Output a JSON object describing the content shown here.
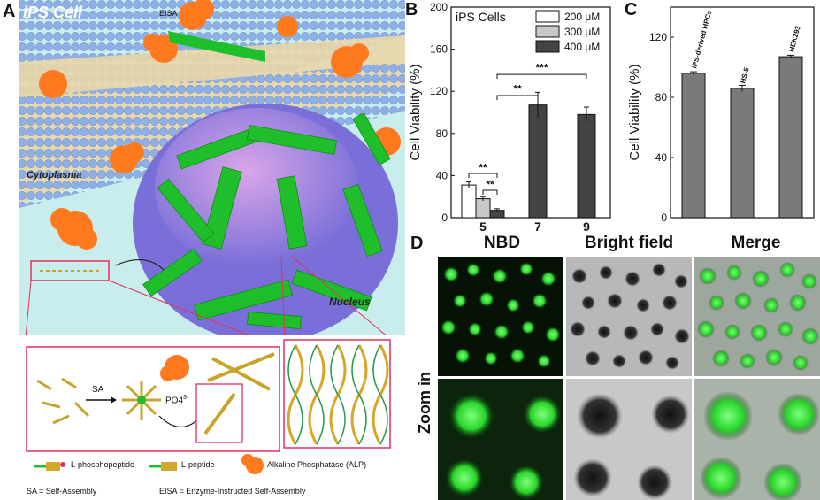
{
  "panel_a": {
    "letter": "A",
    "title": "iPS Cell",
    "eisa_arrow_label": "EISA",
    "cytoplasma_label": "Cytoplasma",
    "nucleus_label": "Nucleus",
    "sa_label": "SA",
    "phosphate_label": "PO4",
    "phosphate_sup": "3-",
    "legend": {
      "phosphopeptide": "L-phosphopeptide",
      "peptide": "L-peptide",
      "alp": "Alkaline Phosphatase (ALP)",
      "sa_def": "SA = Self-Assembly",
      "eisa_def": "EISA = Enzyme-Instructed Self-Assembly"
    },
    "colors": {
      "membrane": "#8fb0e6",
      "enzyme": "#ff7a1f",
      "fiber": "#1fbf2b",
      "nucleus": "#7a7ae0",
      "cytoplasm": "#c9ecec",
      "frame": "#e0305a"
    }
  },
  "chart_data": [
    {
      "panel": "B",
      "type": "bar",
      "title": "iPS Cells",
      "ylabel": "Cell Viability (%)",
      "xlabel": "",
      "categories": [
        "5",
        "7",
        "9"
      ],
      "ylim": [
        0,
        200
      ],
      "yticks": [
        "0",
        "40",
        "80",
        "120",
        "160",
        "200"
      ],
      "series": [
        {
          "name": "200 μM",
          "color": "#ffffff",
          "values": [
            31,
            null,
            null
          ],
          "errors": [
            3,
            null,
            null
          ]
        },
        {
          "name": "300 μM",
          "color": "#c8c8c8",
          "values": [
            18,
            null,
            null
          ],
          "errors": [
            2,
            null,
            null
          ]
        },
        {
          "name": "400 μM",
          "color": "#444444",
          "values": [
            7,
            107,
            98
          ],
          "errors": [
            1.5,
            12,
            7
          ]
        }
      ],
      "significance": [
        "**",
        "**",
        "**",
        "***"
      ],
      "legend_position": "top-right"
    },
    {
      "panel": "C",
      "type": "bar",
      "title": "",
      "ylabel": "Cell Viability (%)",
      "xlabel": "",
      "categories": [
        "iPS-derived HPCs",
        "HS-5",
        "HEK293"
      ],
      "values": [
        96,
        86,
        107
      ],
      "errors": [
        1,
        2,
        1
      ],
      "color": "#7a7a7a",
      "ylim": [
        0,
        140
      ],
      "yticks": [
        "0",
        "40",
        "80",
        "120"
      ]
    }
  ],
  "panel_b": {
    "letter": "B"
  },
  "panel_c": {
    "letter": "C"
  },
  "panel_d": {
    "letter": "D",
    "columns": [
      "NBD",
      "Bright field",
      "Merge"
    ],
    "row_label": "Zoom in"
  }
}
